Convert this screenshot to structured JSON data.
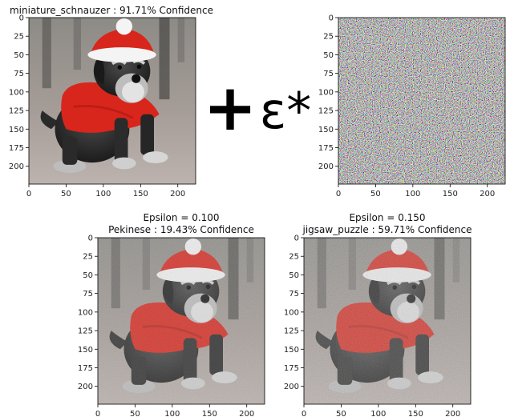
{
  "chart_data": [
    {
      "type": "image",
      "title": "miniature_schnauzer : 91.71% Confidence",
      "content": "original-image",
      "xlim": [
        0,
        224
      ],
      "ylim": [
        224,
        0
      ],
      "xticks": [
        0,
        50,
        100,
        150,
        200
      ],
      "yticks": [
        0,
        25,
        50,
        75,
        100,
        125,
        150,
        175,
        200
      ]
    },
    {
      "type": "image",
      "title": "",
      "content": "perturbation-image",
      "xlim": [
        0,
        224
      ],
      "ylim": [
        224,
        0
      ],
      "xticks": [
        0,
        50,
        100,
        150,
        200
      ],
      "yticks": [
        0,
        25,
        50,
        75,
        100,
        125,
        150,
        175,
        200
      ]
    },
    {
      "type": "image",
      "title": "Epsilon = 0.100",
      "subtitle": "Pekinese : 19.43% Confidence",
      "content": "adversarial-image",
      "xlim": [
        0,
        224
      ],
      "ylim": [
        224,
        0
      ],
      "xticks": [
        0,
        50,
        100,
        150,
        200
      ],
      "yticks": [
        0,
        25,
        50,
        75,
        100,
        125,
        150,
        175,
        200
      ]
    },
    {
      "type": "image",
      "title": "Epsilon = 0.150",
      "subtitle": "jigsaw_puzzle : 59.71% Confidence",
      "content": "adversarial-image",
      "xlim": [
        0,
        224
      ],
      "ylim": [
        224,
        0
      ],
      "xticks": [
        0,
        50,
        100,
        150,
        200
      ],
      "yticks": [
        0,
        25,
        50,
        75,
        100,
        125,
        150,
        175,
        200
      ]
    }
  ],
  "operators": {
    "plus": "+",
    "epsilon_times": "ε*"
  },
  "colors": {
    "background": "#ffffff",
    "axis": "#000000",
    "hat_red": "#d8261c",
    "hat_white": "#f4f4f4",
    "floor": "#b7aba6"
  }
}
